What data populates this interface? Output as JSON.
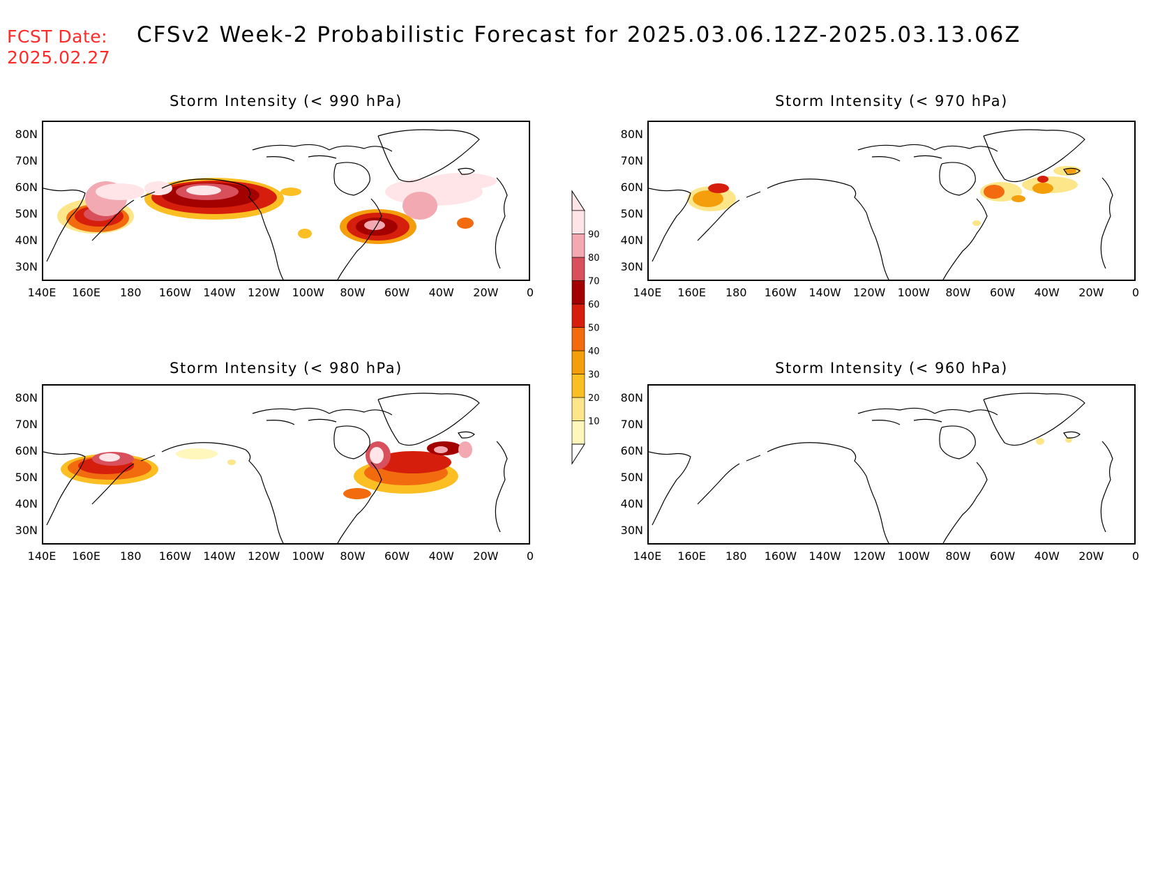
{
  "header": {
    "fcst_label": "FCST Date:",
    "fcst_date": "2025.02.27",
    "title": "CFSv2 Week-2 Probabilistic Forecast for 2025.03.06.12Z-2025.03.13.06Z"
  },
  "colors": {
    "fcst_text": "#ff2a2a",
    "c10": "#fff7bc",
    "c20": "#fde68a",
    "c30": "#fbbf24",
    "c40": "#f59e0b",
    "c50": "#f26b0f",
    "c60": "#d61e0c",
    "c70": "#a30000",
    "c80": "#d7505c",
    "c90": "#f2a9b1",
    "c100": "#ffe4e8"
  },
  "axes": {
    "lat_labels": [
      "80N",
      "70N",
      "60N",
      "50N",
      "40N",
      "30N"
    ],
    "lon_labels": [
      "140E",
      "160E",
      "180",
      "160W",
      "140W",
      "120W",
      "100W",
      "80W",
      "60W",
      "40W",
      "20W",
      "0"
    ]
  },
  "colorbar": {
    "levels": [
      "10",
      "20",
      "30",
      "40",
      "50",
      "60",
      "70",
      "80",
      "90"
    ]
  },
  "panels": [
    {
      "title": "Storm Intensity (< 990 hPa)"
    },
    {
      "title": "Storm Intensity (< 970 hPa)"
    },
    {
      "title": "Storm Intensity (< 980 hPa)"
    },
    {
      "title": "Storm Intensity (< 960 hPa)"
    }
  ]
}
